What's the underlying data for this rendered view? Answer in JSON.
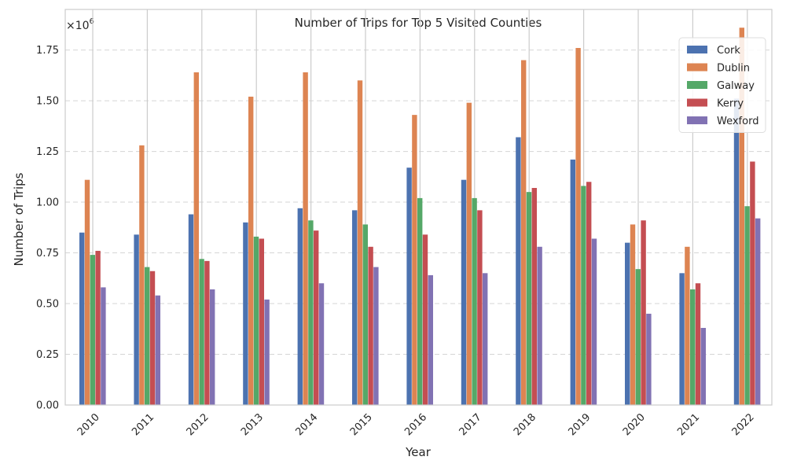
{
  "chart_data": {
    "type": "bar",
    "title": "Number of Trips for Top 5 Visited Counties",
    "xlabel": "Year",
    "ylabel": "Number of Trips",
    "y_multiplier_base": "×10",
    "y_multiplier_exp": "6",
    "ylim": [
      0,
      1.95
    ],
    "yticks": [
      "0.00",
      "0.25",
      "0.50",
      "0.75",
      "1.00",
      "1.25",
      "1.50",
      "1.75"
    ],
    "ytick_values": [
      0,
      0.25,
      0.5,
      0.75,
      1.0,
      1.25,
      1.5,
      1.75
    ],
    "grid": true,
    "legend_position": "top-right",
    "categories": [
      "2010",
      "2011",
      "2012",
      "2013",
      "2014",
      "2015",
      "2016",
      "2017",
      "2018",
      "2019",
      "2020",
      "2021",
      "2022"
    ],
    "series": [
      {
        "name": "Cork",
        "color": "#4c72b0",
        "values": [
          0.85,
          0.84,
          0.94,
          0.9,
          0.97,
          0.96,
          1.17,
          1.11,
          1.32,
          1.21,
          0.8,
          0.65,
          1.51
        ]
      },
      {
        "name": "Dublin",
        "color": "#dd8452",
        "values": [
          1.11,
          1.28,
          1.64,
          1.52,
          1.64,
          1.6,
          1.43,
          1.49,
          1.7,
          1.76,
          0.89,
          0.78,
          1.86
        ]
      },
      {
        "name": "Galway",
        "color": "#55a868",
        "values": [
          0.74,
          0.68,
          0.72,
          0.83,
          0.91,
          0.89,
          1.02,
          1.02,
          1.05,
          1.08,
          0.67,
          0.57,
          0.98
        ]
      },
      {
        "name": "Kerry",
        "color": "#c44e52",
        "values": [
          0.76,
          0.66,
          0.71,
          0.82,
          0.86,
          0.78,
          0.84,
          0.96,
          1.07,
          1.1,
          0.91,
          0.6,
          1.2
        ]
      },
      {
        "name": "Wexford",
        "color": "#8172b3",
        "values": [
          0.58,
          0.54,
          0.57,
          0.52,
          0.6,
          0.68,
          0.64,
          0.65,
          0.78,
          0.82,
          0.45,
          0.38,
          0.92
        ]
      }
    ]
  }
}
